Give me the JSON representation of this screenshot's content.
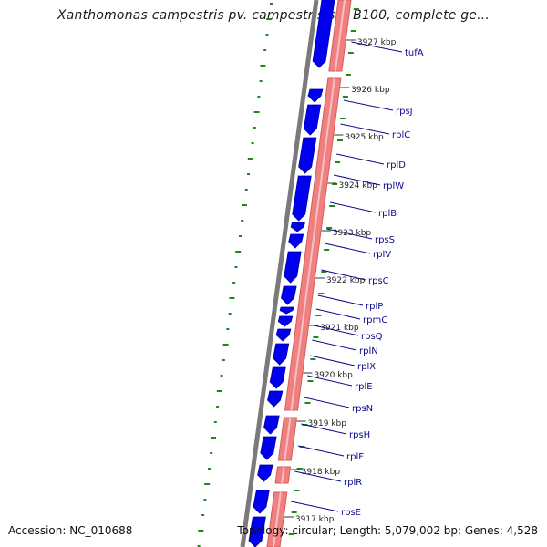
{
  "title": "Xanthomonas campestris pv. campestris str. B100, complete ge...",
  "footer": {
    "accession": "Accession: NC_010688",
    "info": "Topology: circular; Length: 5,079,002 bp; Genes: 4,528"
  },
  "colors": {
    "forward_strand": "#0000ee",
    "reverse_strand": "#f08080",
    "backbone": "#7a7a7a",
    "gc_marks": "#1a8a1a",
    "labels": "#0a0a8c"
  },
  "kbp_labels": [
    "3927 kbp",
    "3926 kbp",
    "3925 kbp",
    "3924 kbp",
    "3923 kbp",
    "3922 kbp",
    "3921 kbp",
    "3920 kbp",
    "3919 kbp",
    "3918 kbp",
    "3917 kbp"
  ],
  "genes": [
    "tufA",
    "rpsJ",
    "rplC",
    "rplD",
    "rplW",
    "rplB",
    "rpsS",
    "rplV",
    "rpsC",
    "rplP",
    "rpmC",
    "rpsQ",
    "rplN",
    "rplX",
    "rplE",
    "rpsN",
    "rpsH",
    "rplF",
    "rplR",
    "rpsE"
  ]
}
